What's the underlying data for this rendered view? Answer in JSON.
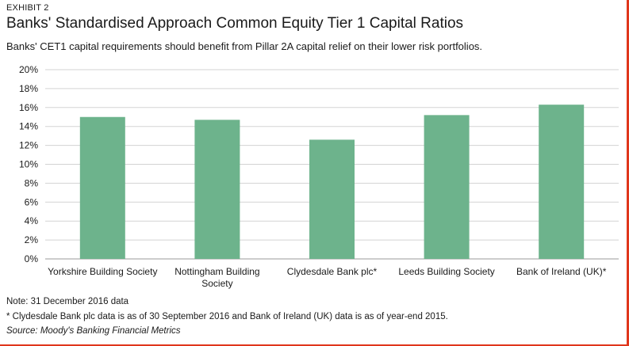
{
  "exhibit": "EXHIBIT 2",
  "title": "Banks' Standardised Approach Common Equity Tier 1 Capital Ratios",
  "subtitle": "Banks' CET1 capital requirements should benefit from Pillar 2A capital relief on their lower risk portfolios.",
  "notes": {
    "note1": "Note: 31 December 2016 data",
    "note2": "* Clydesdale Bank plc data is as of 30 September 2016 and Bank of Ireland (UK) data is as of year-end 2015.",
    "source": "Source: Moody's Banking Financial Metrics"
  },
  "colors": {
    "bar": "#6db38c",
    "accent": "#e0361c",
    "grid": "#d3d3d3"
  },
  "chart_data": {
    "type": "bar",
    "categories": [
      [
        "Yorkshire Building Society"
      ],
      [
        "Nottingham Building",
        "Society"
      ],
      [
        "Clydesdale Bank plc*"
      ],
      [
        "Leeds Building Society"
      ],
      [
        "Bank of Ireland (UK)*"
      ]
    ],
    "values": [
      15.0,
      14.7,
      12.6,
      15.2,
      16.3
    ],
    "ylim": [
      0,
      20
    ],
    "yticks": [
      0,
      2,
      4,
      6,
      8,
      10,
      12,
      14,
      16,
      18,
      20
    ],
    "ytick_suffix": "%",
    "grid": true
  }
}
